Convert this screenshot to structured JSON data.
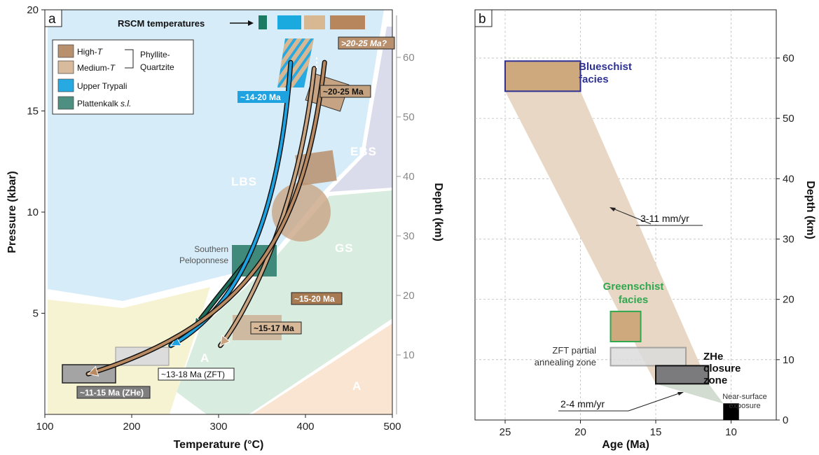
{
  "chart_data": [
    {
      "panel": "a",
      "type": "scatter",
      "xlabel": "Temperature (°C)",
      "ylabel": "Pressure (kbar)",
      "y2label": "Depth (km)",
      "xlim": [
        100,
        500
      ],
      "ylim": [
        0,
        20
      ],
      "y2lim": [
        0,
        68
      ],
      "xticks": [
        "100",
        "200",
        "300",
        "400",
        "500"
      ],
      "yticks": [
        "5",
        "10",
        "15",
        "20"
      ],
      "y2ticks": [
        "10",
        "20",
        "30",
        "40",
        "50",
        "60"
      ],
      "facies_fields": [
        {
          "label": "LBS",
          "color": "#d6ecf8"
        },
        {
          "label": "EBS",
          "color": "#dadbeb"
        },
        {
          "label": "GS",
          "color": "#d8ecdf"
        },
        {
          "label": "A",
          "color": "#f9e5d2"
        },
        {
          "label": "A",
          "color": "#f6f3d2"
        }
      ],
      "rscm_label": "RSCM temperatures",
      "rscm_colors": [
        "#1a7a62",
        "#1aaae0",
        "#d8b793",
        "#b8865c"
      ],
      "legend": [
        {
          "label": "High-",
          "italic": "T",
          "color": "#b8906e"
        },
        {
          "label": "Medium-",
          "italic": "T",
          "color": "#d7bb9c"
        },
        {
          "label": "Upper Trypali",
          "italic": "",
          "color": "#27a9e1"
        },
        {
          "label": "Plattenkalk ",
          "italic": "s.l.",
          "color": "#4d8f80"
        }
      ],
      "legend_bracket_label": [
        "Phyllite-",
        "Quartzite"
      ],
      "annotations": {
        "age_upper_trypali": "~14-20 Ma",
        "age_high_t_peak": "~20-25 Ma",
        "age_peak_question": ">20-25 Ma?",
        "age_15_20": "~15-20 Ma",
        "age_15_17": "~15-17 Ma",
        "age_zft": "~13-18 Ma (ZFT)",
        "age_zhe": "~11-15 Ma (ZHe)",
        "southern_peloponnese": [
          "Southern",
          "Peloponnese"
        ]
      },
      "paths": [
        {
          "name": "Plattenkalk",
          "color": "#1e6e5c",
          "points": [
            [
              333,
              7.6
            ],
            [
              300,
              5.9
            ],
            [
              272,
              4.3
            ]
          ]
        },
        {
          "name": "Upper Trypali",
          "color": "#1ea2e0",
          "points": [
            [
              383,
              17.4
            ],
            [
              370,
              9.5
            ],
            [
              322,
              5.2
            ],
            [
              245,
              3.4
            ]
          ]
        },
        {
          "name": "Medium-T",
          "color": "#c9a37f",
          "points": [
            [
              410,
              17.1
            ],
            [
              392,
              9.8
            ],
            [
              330,
              4.9
            ],
            [
              302,
              3.4
            ]
          ]
        },
        {
          "name": "High-T",
          "color": "#b98a62",
          "points": [
            [
              422,
              17.4
            ],
            [
              400,
              9.2
            ],
            [
              340,
              4.5
            ],
            [
              150,
              2.0
            ]
          ]
        }
      ]
    },
    {
      "panel": "b",
      "type": "area",
      "xlabel": "Age (Ma)",
      "y2label": "Depth (km)",
      "xlim": [
        27,
        7
      ],
      "ylim": [
        0,
        68
      ],
      "xticks": [
        "25",
        "20",
        "15",
        "10"
      ],
      "yticks": [
        "0",
        "10",
        "20",
        "30",
        "40",
        "50",
        "60"
      ],
      "boxes": [
        {
          "label": "Blueschist facies",
          "age": [
            25,
            20
          ],
          "depth": [
            54.5,
            59.5
          ],
          "label_color": "#2e3192"
        },
        {
          "label": "Greenschist facies",
          "age": [
            18,
            16
          ],
          "depth": [
            13,
            18
          ],
          "label_color": "#2fa84f"
        },
        {
          "label": "ZFT partial annealing zone",
          "age": [
            18,
            13
          ],
          "depth": [
            9,
            12
          ]
        },
        {
          "label": "ZHe closure zone",
          "age": [
            15,
            11.5
          ],
          "depth": [
            6,
            9
          ]
        },
        {
          "label": "Near-surface exposure",
          "age": [
            10.5,
            9.5
          ],
          "depth": [
            0,
            2.7
          ]
        }
      ],
      "rate_labels": {
        "upper": "3-11 mm/yr",
        "lower": "2-4 mm/yr"
      }
    }
  ]
}
